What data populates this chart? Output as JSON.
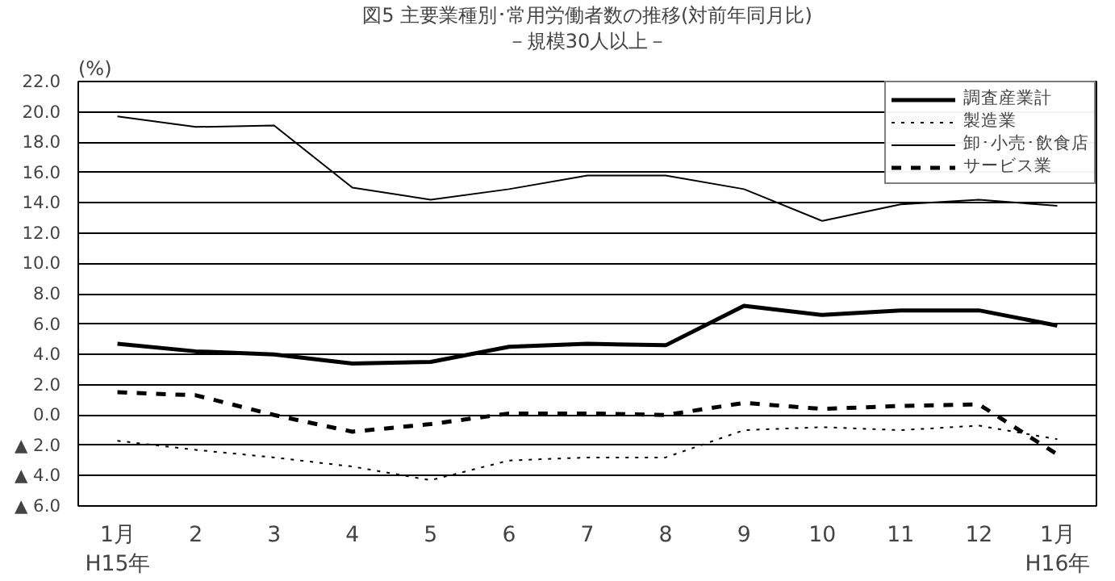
{
  "chart_data": {
    "type": "line",
    "title": "図5 主要業種別･常用労働者数の推移(対前年同月比)",
    "subtitle": "－規模30人以上－",
    "ylabel": "(%)",
    "categories": [
      "1月\nH15年",
      "2",
      "3",
      "4",
      "5",
      "6",
      "7",
      "8",
      "9",
      "10",
      "11",
      "12",
      "1月\nH16年"
    ],
    "series": [
      {
        "name": "調査産業計",
        "color": "#000000",
        "line_style": "solid",
        "values": [
          4.7,
          4.2,
          4.0,
          3.4,
          3.5,
          4.5,
          4.7,
          4.6,
          7.2,
          6.6,
          6.9,
          6.9,
          5.9
        ]
      },
      {
        "name": "製造業",
        "color": "#000000",
        "line_style": "dotted",
        "values": [
          -1.7,
          -2.3,
          -2.8,
          -3.4,
          -4.3,
          -3.0,
          -2.8,
          -2.8,
          -1.0,
          -0.8,
          -1.0,
          -0.7,
          -1.6
        ]
      },
      {
        "name": "卸･小売･飲食店",
        "color": "#000000",
        "line_style": "solid",
        "values": [
          19.7,
          19.0,
          19.1,
          15.0,
          14.2,
          14.9,
          15.8,
          15.8,
          14.9,
          12.8,
          13.9,
          14.2,
          13.8
        ]
      },
      {
        "name": "サービス業",
        "color": "#000000",
        "line_style": "dashed",
        "values": [
          1.5,
          1.3,
          0.0,
          -1.1,
          -0.6,
          0.1,
          0.1,
          0.0,
          0.8,
          0.4,
          0.6,
          0.7,
          -2.6
        ]
      }
    ],
    "ylim": [
      -6,
      22
    ],
    "yticks": [
      {
        "value": -6,
        "label": "▲ 6.0"
      },
      {
        "value": -4,
        "label": "▲ 4.0"
      },
      {
        "value": -2,
        "label": "▲ 2.0"
      },
      {
        "value": 0,
        "label": "0.0"
      },
      {
        "value": 2,
        "label": "2.0"
      },
      {
        "value": 4,
        "label": "4.0"
      },
      {
        "value": 6,
        "label": "6.0"
      },
      {
        "value": 8,
        "label": "8.0"
      },
      {
        "value": 10,
        "label": "10.0"
      },
      {
        "value": 12,
        "label": "12.0"
      },
      {
        "value": 14,
        "label": "14.0"
      },
      {
        "value": 16,
        "label": "16.0"
      },
      {
        "value": 18,
        "label": "18.0"
      },
      {
        "value": 20,
        "label": "20.0"
      },
      {
        "value": 22,
        "label": "22.0"
      }
    ],
    "grid": "y",
    "legend": "top right",
    "marker": "none"
  }
}
